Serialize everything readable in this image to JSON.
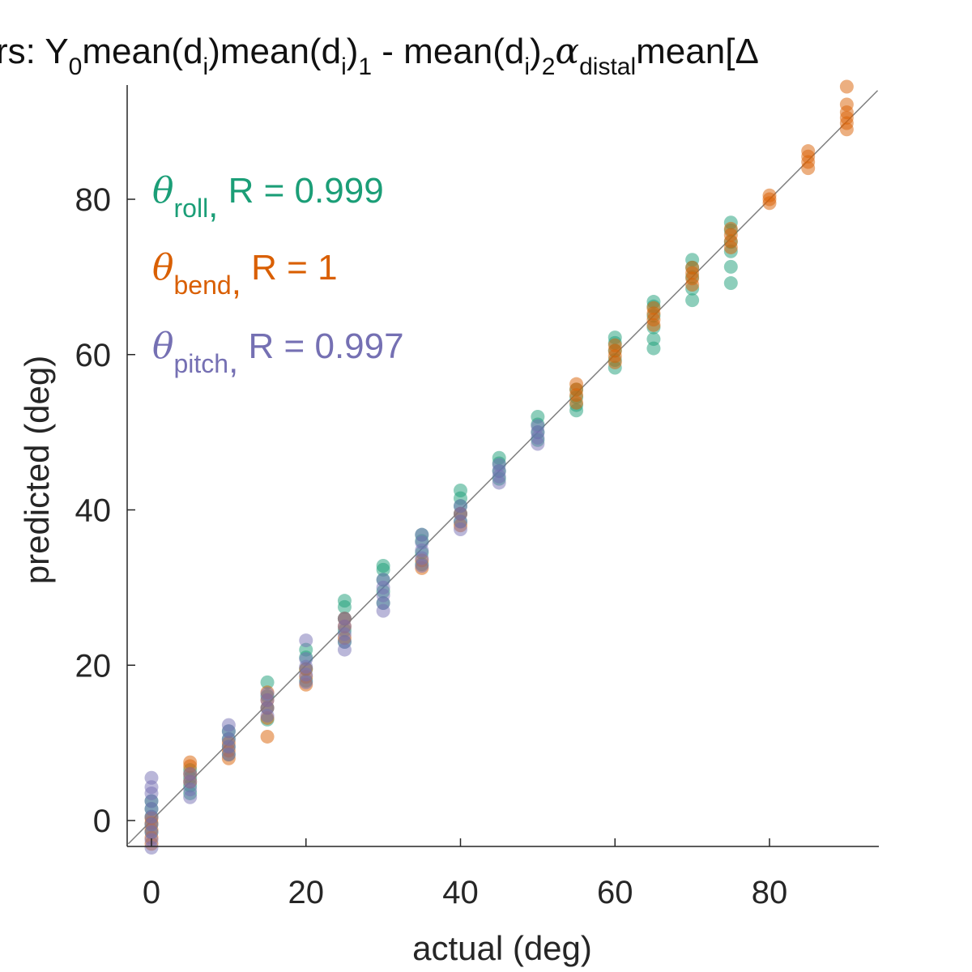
{
  "title": {
    "prefix": "rs: Y",
    "parts": [
      {
        "text": "Y",
        "sub": "0"
      },
      {
        "text": "mean(d",
        "sub": "i"
      },
      {
        "text": ")mean(d",
        "sub": "i"
      },
      {
        "text": ")",
        "sub": "1"
      },
      {
        "text": " - mean(d",
        "sub": "i"
      },
      {
        "text": ")",
        "sub": "2"
      },
      {
        "text": "α",
        "sub": "distal"
      },
      {
        "text": "mean[Δ",
        "sub": ""
      }
    ]
  },
  "colors": {
    "roll": "#1b9e77",
    "bend": "#d95f02",
    "pitch": "#7570b3",
    "axis": "#262626",
    "diagonal": "#7f7f7f"
  },
  "legend": [
    {
      "symbol": "θ",
      "sub": "roll",
      "sep": ",",
      "stat": " R = 0.999",
      "color_key": "roll"
    },
    {
      "symbol": "θ",
      "sub": "bend",
      "sep": ",",
      "stat": " R = 1",
      "color_key": "bend"
    },
    {
      "symbol": "θ",
      "sub": "pitch",
      "sep": ",",
      "stat": " R = 0.997",
      "color_key": "pitch"
    }
  ],
  "chart_data": {
    "type": "scatter",
    "title": "rs: Y0mean(di)mean(di)1 - mean(di)2αdistalmean[Δ",
    "xlabel": "actual (deg)",
    "ylabel": "predicted (deg)",
    "xlim": [
      -3,
      94
    ],
    "ylim": [
      -3.5,
      94
    ],
    "xticks": [
      0,
      20,
      40,
      60,
      80
    ],
    "yticks": [
      0,
      20,
      40,
      60,
      80
    ],
    "reference_line": "y = x",
    "grid": false,
    "legend_placement": "top-left",
    "series": [
      {
        "name": "θroll, R = 0.999",
        "color_key": "roll",
        "points": [
          {
            "x": 0,
            "ys": [
              -1.5,
              -0.5,
              0.5,
              1.5,
              2.5
            ]
          },
          {
            "x": 5,
            "ys": [
              3.5,
              4.5,
              5.5,
              6.5
            ]
          },
          {
            "x": 10,
            "ys": [
              8.5,
              9.5,
              10.5,
              11.5
            ]
          },
          {
            "x": 15,
            "ys": [
              13,
              14.5,
              16,
              17.8
            ]
          },
          {
            "x": 20,
            "ys": [
              18,
              19.5,
              21,
              22
            ]
          },
          {
            "x": 25,
            "ys": [
              23,
              24.5,
              26,
              27.5,
              28.3
            ]
          },
          {
            "x": 30,
            "ys": [
              28,
              29.5,
              31,
              32.3,
              32.8
            ]
          },
          {
            "x": 35,
            "ys": [
              33,
              34.5,
              36,
              36.8
            ]
          },
          {
            "x": 40,
            "ys": [
              38.5,
              39.5,
              40.5,
              41.5,
              42.5
            ]
          },
          {
            "x": 45,
            "ys": [
              44,
              45,
              46,
              46.7
            ]
          },
          {
            "x": 50,
            "ys": [
              49,
              50,
              51,
              52
            ]
          },
          {
            "x": 55,
            "ys": [
              52.8,
              53.5,
              54.5,
              55.5
            ]
          },
          {
            "x": 60,
            "ys": [
              58.3,
              59.3,
              60.5,
              61.5,
              62.2
            ]
          },
          {
            "x": 65,
            "ys": [
              60.8,
              62,
              63.5,
              65,
              66.2,
              66.8
            ]
          },
          {
            "x": 70,
            "ys": [
              67,
              68.5,
              70,
              71.2,
              72.2
            ]
          },
          {
            "x": 75,
            "ys": [
              69.2,
              71.3,
              73.3,
              74.5,
              76,
              77
            ]
          }
        ]
      },
      {
        "name": "θbend, R = 1",
        "color_key": "bend",
        "points": [
          {
            "x": 0,
            "ys": [
              -3,
              -2.2,
              -1.2,
              -0.3,
              0.3
            ]
          },
          {
            "x": 5,
            "ys": [
              5,
              6,
              7,
              7.5
            ]
          },
          {
            "x": 10,
            "ys": [
              8,
              9,
              10
            ]
          },
          {
            "x": 15,
            "ys": [
              10.8,
              13.2,
              14.5,
              15.5,
              16.5
            ]
          },
          {
            "x": 20,
            "ys": [
              17.5,
              18.5,
              19.5
            ]
          },
          {
            "x": 25,
            "ys": [
              23.5,
              25,
              26
            ]
          },
          {
            "x": 35,
            "ys": [
              32.5,
              33.5
            ]
          },
          {
            "x": 40,
            "ys": [
              38,
              39.5
            ]
          },
          {
            "x": 55,
            "ys": [
              53.8,
              54.8,
              55.5,
              56.2
            ]
          },
          {
            "x": 60,
            "ys": [
              59,
              59.8,
              60.5,
              61.2
            ]
          },
          {
            "x": 65,
            "ys": [
              63.8,
              64.5,
              65.3,
              66
            ]
          },
          {
            "x": 70,
            "ys": [
              69,
              69.8,
              70.5,
              71.2
            ]
          },
          {
            "x": 75,
            "ys": [
              73.8,
              74.6,
              75.4,
              76.2
            ]
          },
          {
            "x": 80,
            "ys": [
              79.5,
              80,
              80.5
            ]
          },
          {
            "x": 85,
            "ys": [
              84,
              84.8,
              85.5,
              86.2
            ]
          },
          {
            "x": 90,
            "ys": [
              89,
              89.8,
              90.5,
              91.2,
              92.2,
              94.5
            ]
          }
        ]
      },
      {
        "name": "θpitch, R = 0.997",
        "color_key": "pitch",
        "points": [
          {
            "x": 0,
            "ys": [
              -3.5,
              -2.5,
              -1.5,
              -0.5,
              0.5,
              1.5,
              2.5,
              3.5,
              4.3,
              5.5
            ]
          },
          {
            "x": 5,
            "ys": [
              3,
              4,
              5,
              6
            ]
          },
          {
            "x": 10,
            "ys": [
              8.5,
              9.5,
              10.5,
              11.5,
              12.3
            ]
          },
          {
            "x": 15,
            "ys": [
              13.5,
              14.5,
              15.5,
              16.3
            ]
          },
          {
            "x": 20,
            "ys": [
              17.8,
              18.8,
              19.8,
              20.8,
              23.2
            ]
          },
          {
            "x": 25,
            "ys": [
              22,
              23,
              24,
              25,
              26
            ]
          },
          {
            "x": 30,
            "ys": [
              27,
              28,
              29,
              30,
              31
            ]
          },
          {
            "x": 35,
            "ys": [
              32.8,
              33.8,
              34.8,
              35.8,
              36.8
            ]
          },
          {
            "x": 40,
            "ys": [
              37.5,
              38.5,
              39.5,
              40.5
            ]
          },
          {
            "x": 45,
            "ys": [
              43.5,
              44.3,
              45,
              45.8
            ]
          },
          {
            "x": 50,
            "ys": [
              48.5,
              49.3,
              50,
              50.8
            ]
          }
        ]
      }
    ]
  }
}
